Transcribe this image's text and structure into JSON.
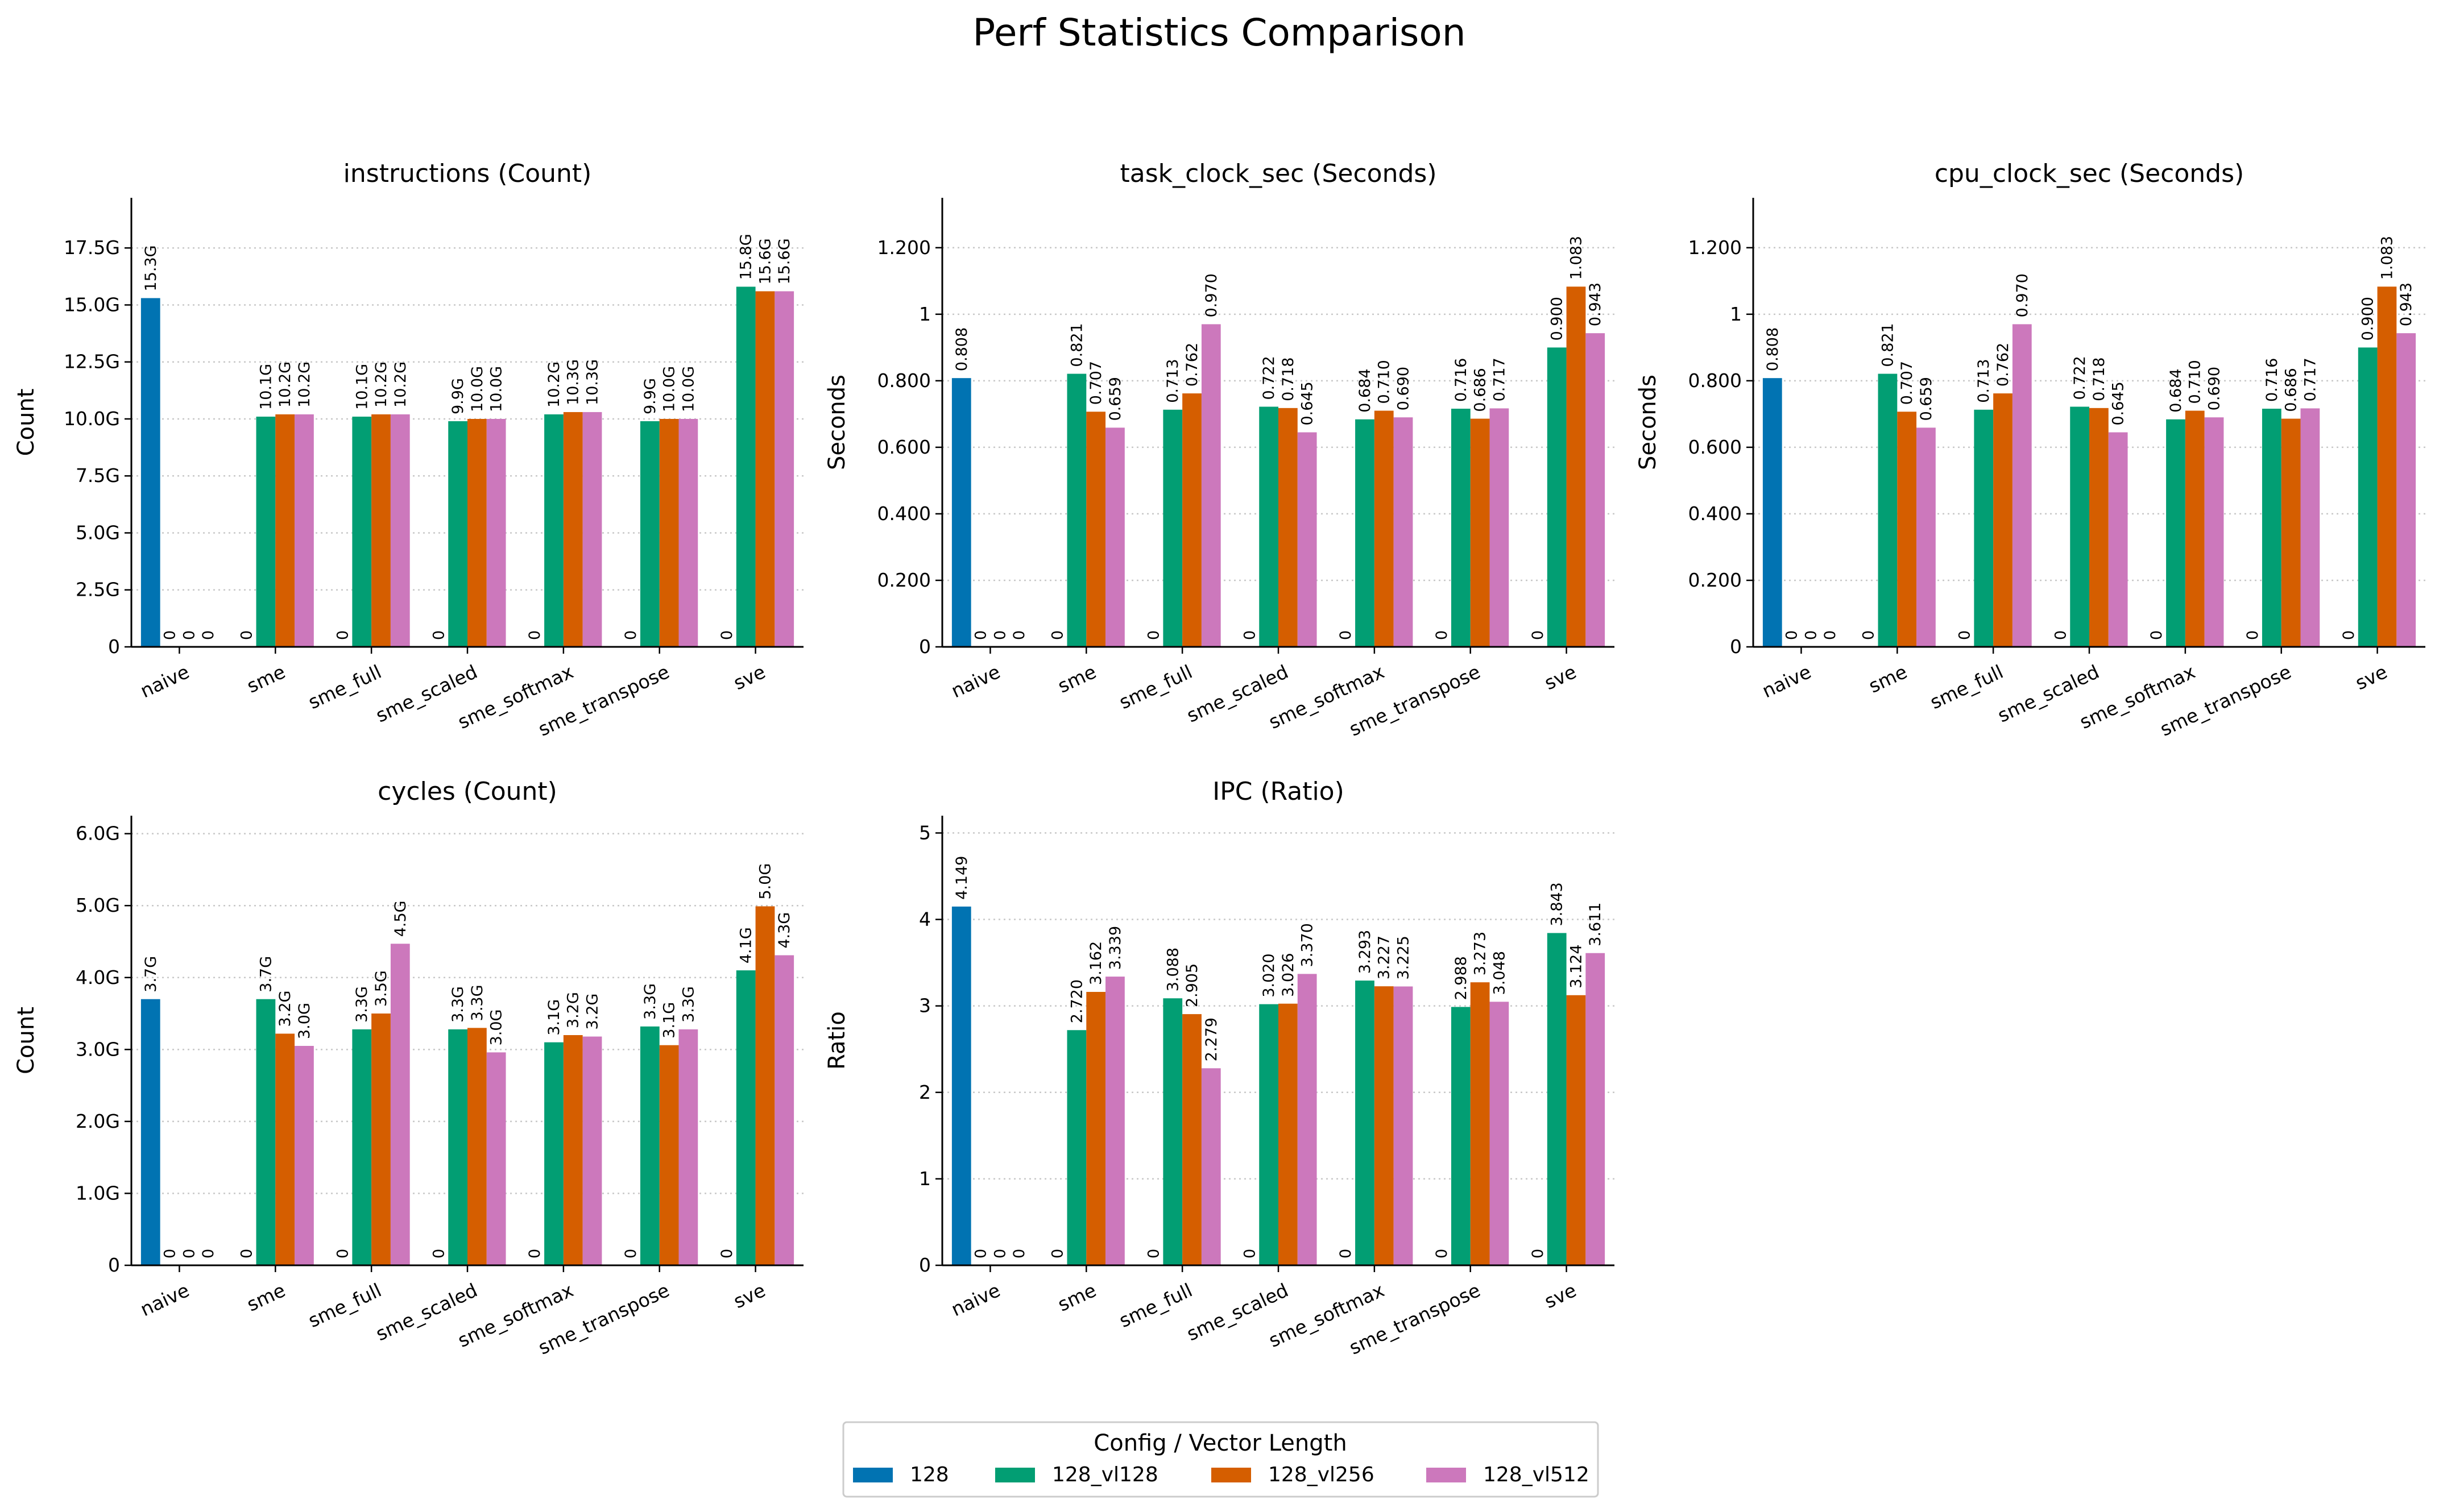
{
  "figure": {
    "suptitle": "Perf Statistics Comparison",
    "legend_title": "Config / Vector Length"
  },
  "chart_data": [
    {
      "type": "bar",
      "title": "instructions (Count)",
      "xlabel": "",
      "ylabel": "Count",
      "categories": [
        "naive",
        "sme",
        "sme_full",
        "sme_scaled",
        "sme_softmax",
        "sme_transpose",
        "sve"
      ],
      "ylim": [
        0,
        19.7
      ],
      "yticks": [
        0,
        2.5,
        5,
        7.5,
        10,
        12.5,
        15,
        17.5
      ],
      "ytick_labels": [
        "0",
        "2.5G",
        "5.0G",
        "7.5G",
        "10.0G",
        "12.5G",
        "15.0G",
        "17.5G"
      ],
      "grid": "horizontal dotted",
      "series": [
        {
          "name": "128",
          "values": [
            15.3,
            0,
            0,
            0,
            0,
            0,
            0
          ],
          "labels": [
            "15.3G",
            "0",
            "0",
            "0",
            "0",
            "0",
            "0"
          ]
        },
        {
          "name": "128_vl128",
          "values": [
            0,
            10.1,
            10.1,
            9.9,
            10.2,
            9.9,
            15.8
          ],
          "labels": [
            "0",
            "10.1G",
            "10.1G",
            "9.9G",
            "10.2G",
            "9.9G",
            "15.8G"
          ]
        },
        {
          "name": "128_vl256",
          "values": [
            0,
            10.2,
            10.2,
            10.0,
            10.3,
            10.0,
            15.6
          ],
          "labels": [
            "0",
            "10.2G",
            "10.2G",
            "10.0G",
            "10.3G",
            "10.0G",
            "15.6G"
          ]
        },
        {
          "name": "128_vl512",
          "values": [
            0,
            10.2,
            10.2,
            10.0,
            10.3,
            10.0,
            15.6
          ],
          "labels": [
            "0",
            "10.2G",
            "10.2G",
            "10.0G",
            "10.3G",
            "10.0G",
            "15.6G"
          ]
        }
      ]
    },
    {
      "type": "bar",
      "title": "task_clock_sec (Seconds)",
      "xlabel": "",
      "ylabel": "Seconds",
      "categories": [
        "naive",
        "sme",
        "sme_full",
        "sme_scaled",
        "sme_softmax",
        "sme_transpose",
        "sve"
      ],
      "ylim": [
        0,
        1.35
      ],
      "yticks": [
        0,
        0.2,
        0.4,
        0.6,
        0.8,
        1.0,
        1.2
      ],
      "ytick_labels": [
        "0",
        "0.200",
        "0.400",
        "0.600",
        "0.800",
        "1",
        "1.200"
      ],
      "grid": "horizontal dotted",
      "series": [
        {
          "name": "128",
          "values": [
            0.808,
            0,
            0,
            0,
            0,
            0,
            0
          ],
          "labels": [
            "0.808",
            "0",
            "0",
            "0",
            "0",
            "0",
            "0"
          ]
        },
        {
          "name": "128_vl128",
          "values": [
            0,
            0.821,
            0.713,
            0.722,
            0.684,
            0.716,
            0.9
          ],
          "labels": [
            "0",
            "0.821",
            "0.713",
            "0.722",
            "0.684",
            "0.716",
            "0.900"
          ]
        },
        {
          "name": "128_vl256",
          "values": [
            0,
            0.707,
            0.762,
            0.718,
            0.71,
            0.686,
            1.083
          ],
          "labels": [
            "0",
            "0.707",
            "0.762",
            "0.718",
            "0.710",
            "0.686",
            "1.083"
          ]
        },
        {
          "name": "128_vl512",
          "values": [
            0,
            0.659,
            0.97,
            0.645,
            0.69,
            0.717,
            0.943
          ],
          "labels": [
            "0",
            "0.659",
            "0.970",
            "0.645",
            "0.690",
            "0.717",
            "0.943"
          ]
        }
      ]
    },
    {
      "type": "bar",
      "title": "cpu_clock_sec (Seconds)",
      "xlabel": "",
      "ylabel": "Seconds",
      "categories": [
        "naive",
        "sme",
        "sme_full",
        "sme_scaled",
        "sme_softmax",
        "sme_transpose",
        "sve"
      ],
      "ylim": [
        0,
        1.35
      ],
      "yticks": [
        0,
        0.2,
        0.4,
        0.6,
        0.8,
        1.0,
        1.2
      ],
      "ytick_labels": [
        "0",
        "0.200",
        "0.400",
        "0.600",
        "0.800",
        "1",
        "1.200"
      ],
      "grid": "horizontal dotted",
      "series": [
        {
          "name": "128",
          "values": [
            0.808,
            0,
            0,
            0,
            0,
            0,
            0
          ],
          "labels": [
            "0.808",
            "0",
            "0",
            "0",
            "0",
            "0",
            "0"
          ]
        },
        {
          "name": "128_vl128",
          "values": [
            0,
            0.821,
            0.713,
            0.722,
            0.684,
            0.716,
            0.9
          ],
          "labels": [
            "0",
            "0.821",
            "0.713",
            "0.722",
            "0.684",
            "0.716",
            "0.900"
          ]
        },
        {
          "name": "128_vl256",
          "values": [
            0,
            0.707,
            0.762,
            0.718,
            0.71,
            0.686,
            1.083
          ],
          "labels": [
            "0",
            "0.707",
            "0.762",
            "0.718",
            "0.710",
            "0.686",
            "1.083"
          ]
        },
        {
          "name": "128_vl512",
          "values": [
            0,
            0.659,
            0.97,
            0.645,
            0.69,
            0.717,
            0.943
          ],
          "labels": [
            "0",
            "0.659",
            "0.970",
            "0.645",
            "0.690",
            "0.717",
            "0.943"
          ]
        }
      ]
    },
    {
      "type": "bar",
      "title": "cycles (Count)",
      "xlabel": "",
      "ylabel": "Count",
      "categories": [
        "naive",
        "sme",
        "sme_full",
        "sme_scaled",
        "sme_softmax",
        "sme_transpose",
        "sve"
      ],
      "ylim": [
        0,
        6.25
      ],
      "yticks": [
        0,
        1,
        2,
        3,
        4,
        5,
        6
      ],
      "ytick_labels": [
        "0",
        "1.0G",
        "2.0G",
        "3.0G",
        "4.0G",
        "5.0G",
        "6.0G"
      ],
      "grid": "horizontal dotted",
      "series": [
        {
          "name": "128",
          "values": [
            3.7,
            0,
            0,
            0,
            0,
            0,
            0
          ],
          "labels": [
            "3.7G",
            "0",
            "0",
            "0",
            "0",
            "0",
            "0"
          ]
        },
        {
          "name": "128_vl128",
          "values": [
            0,
            3.7,
            3.28,
            3.28,
            3.1,
            3.32,
            4.1
          ],
          "labels": [
            "0",
            "3.7G",
            "3.3G",
            "3.3G",
            "3.1G",
            "3.3G",
            "4.1G"
          ]
        },
        {
          "name": "128_vl256",
          "values": [
            0,
            3.22,
            3.5,
            3.3,
            3.2,
            3.06,
            4.99
          ],
          "labels": [
            "0",
            "3.2G",
            "3.5G",
            "3.3G",
            "3.2G",
            "3.1G",
            "5.0G"
          ]
        },
        {
          "name": "128_vl512",
          "values": [
            0,
            3.05,
            4.47,
            2.96,
            3.18,
            3.28,
            4.31
          ],
          "labels": [
            "0",
            "3.0G",
            "4.5G",
            "3.0G",
            "3.2G",
            "3.3G",
            "4.3G"
          ]
        }
      ]
    },
    {
      "type": "bar",
      "title": "IPC (Ratio)",
      "xlabel": "",
      "ylabel": "Ratio",
      "categories": [
        "naive",
        "sme",
        "sme_full",
        "sme_scaled",
        "sme_softmax",
        "sme_transpose",
        "sve"
      ],
      "ylim": [
        0,
        5.2
      ],
      "yticks": [
        0,
        1,
        2,
        3,
        4,
        5
      ],
      "ytick_labels": [
        "0",
        "1",
        "2",
        "3",
        "4",
        "5"
      ],
      "grid": "horizontal dotted",
      "series": [
        {
          "name": "128",
          "values": [
            4.149,
            0,
            0,
            0,
            0,
            0,
            0
          ],
          "labels": [
            "4.149",
            "0",
            "0",
            "0",
            "0",
            "0",
            "0"
          ]
        },
        {
          "name": "128_vl128",
          "values": [
            0,
            2.72,
            3.088,
            3.02,
            3.293,
            2.988,
            3.843
          ],
          "labels": [
            "0",
            "2.720",
            "3.088",
            "3.020",
            "3.293",
            "2.988",
            "3.843"
          ]
        },
        {
          "name": "128_vl256",
          "values": [
            0,
            3.162,
            2.905,
            3.026,
            3.227,
            3.273,
            3.124
          ],
          "labels": [
            "0",
            "3.162",
            "2.905",
            "3.026",
            "3.227",
            "3.273",
            "3.124"
          ]
        },
        {
          "name": "128_vl512",
          "values": [
            0,
            3.339,
            2.279,
            3.37,
            3.225,
            3.048,
            3.611
          ],
          "labels": [
            "0",
            "3.339",
            "2.279",
            "3.370",
            "3.225",
            "3.048",
            "3.611"
          ]
        }
      ]
    }
  ],
  "legend": {
    "placement": "bottom-center",
    "items": [
      {
        "label": "128",
        "color": "#0173b2"
      },
      {
        "label": "128_vl128",
        "color": "#029e73"
      },
      {
        "label": "128_vl256",
        "color": "#d55e00"
      },
      {
        "label": "128_vl512",
        "color": "#cc78bc"
      }
    ]
  }
}
